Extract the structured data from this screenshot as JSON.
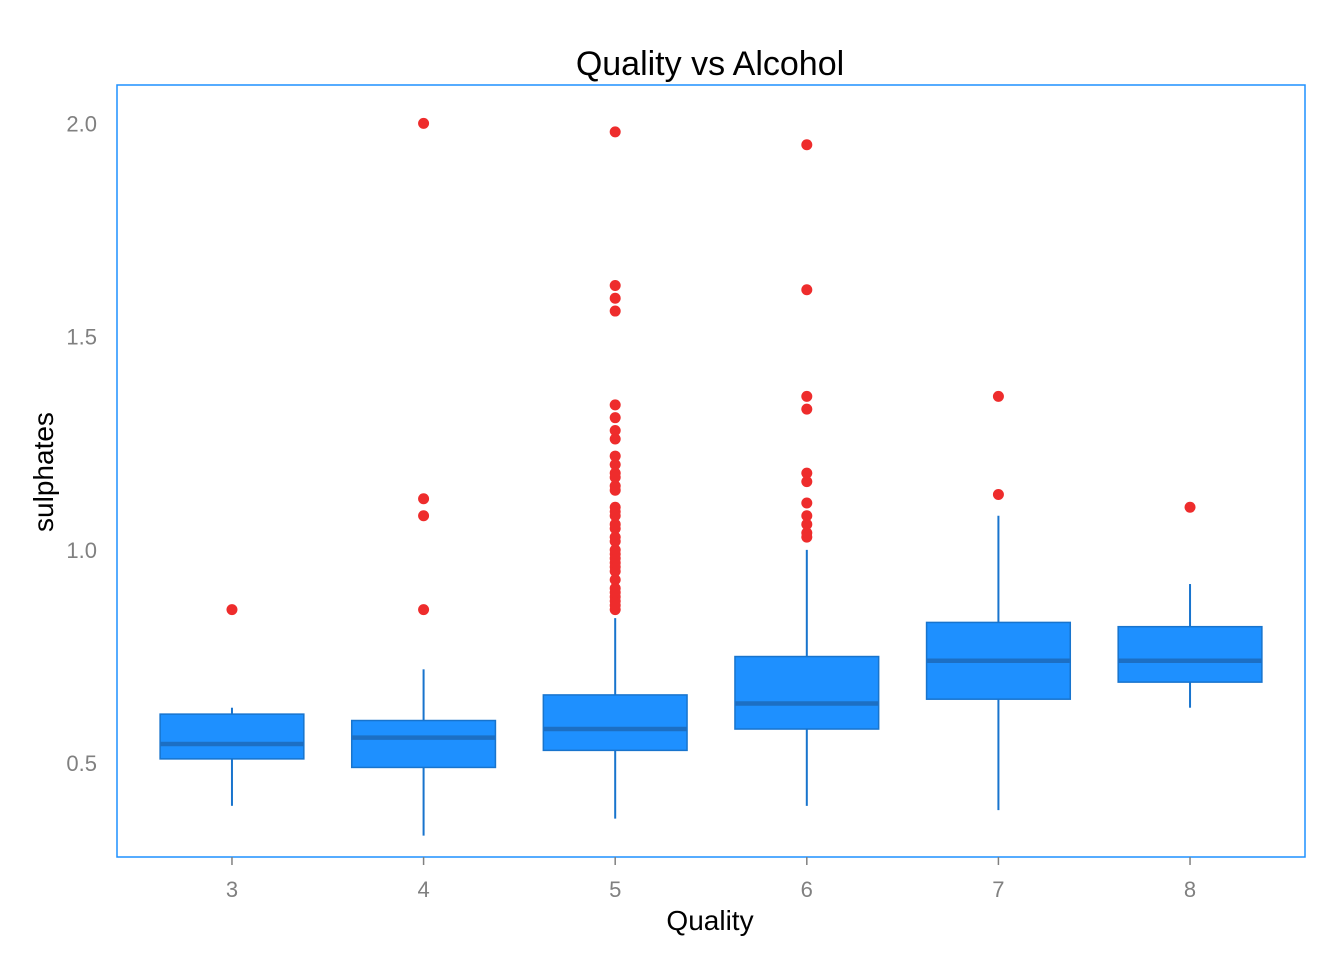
{
  "chart_data": {
    "type": "box",
    "title": "Quality vs Alcohol",
    "xlabel": "Quality",
    "ylabel": "sulphates",
    "categories": [
      "3",
      "4",
      "5",
      "6",
      "7",
      "8"
    ],
    "yticks": [
      "0.5",
      "1.0",
      "1.5",
      "2.0"
    ],
    "ylim": [
      0.28,
      2.09
    ],
    "grid": false,
    "legend": "none",
    "boxes": [
      {
        "category": "3",
        "whisker_low": 0.4,
        "q1": 0.51,
        "median": 0.545,
        "q3": 0.615,
        "whisker_high": 0.63,
        "outliers": [
          0.86
        ]
      },
      {
        "category": "4",
        "whisker_low": 0.33,
        "q1": 0.49,
        "median": 0.56,
        "q3": 0.6,
        "whisker_high": 0.72,
        "outliers": [
          0.86,
          1.08,
          1.12,
          2.0
        ]
      },
      {
        "category": "5",
        "whisker_low": 0.37,
        "q1": 0.53,
        "median": 0.58,
        "q3": 0.66,
        "whisker_high": 0.84,
        "outliers": [
          0.86,
          0.87,
          0.88,
          0.89,
          0.9,
          0.91,
          0.93,
          0.95,
          0.96,
          0.97,
          0.98,
          0.99,
          1.0,
          1.02,
          1.03,
          1.05,
          1.06,
          1.08,
          1.09,
          1.1,
          1.14,
          1.15,
          1.17,
          1.18,
          1.2,
          1.22,
          1.26,
          1.28,
          1.31,
          1.34,
          1.56,
          1.59,
          1.62,
          1.98
        ]
      },
      {
        "category": "6",
        "whisker_low": 0.4,
        "q1": 0.58,
        "median": 0.64,
        "q3": 0.75,
        "whisker_high": 1.0,
        "outliers": [
          1.03,
          1.04,
          1.06,
          1.08,
          1.11,
          1.16,
          1.18,
          1.33,
          1.36,
          1.61,
          1.95
        ]
      },
      {
        "category": "7",
        "whisker_low": 0.39,
        "q1": 0.65,
        "median": 0.74,
        "q3": 0.83,
        "whisker_high": 1.08,
        "outliers": [
          1.13,
          1.36
        ]
      },
      {
        "category": "8",
        "whisker_low": 0.63,
        "q1": 0.69,
        "median": 0.74,
        "q3": 0.82,
        "whisker_high": 0.92,
        "outliers": [
          1.1
        ]
      }
    ],
    "colors": {
      "box_fill": "#1e90ff",
      "box_stroke": "#1874cd",
      "median_line": "#1c6fc4",
      "whisker": "#1874cd",
      "outlier": "#ee2c2c",
      "panel_border": "#1e90ff",
      "tick_text": "#808080"
    }
  }
}
